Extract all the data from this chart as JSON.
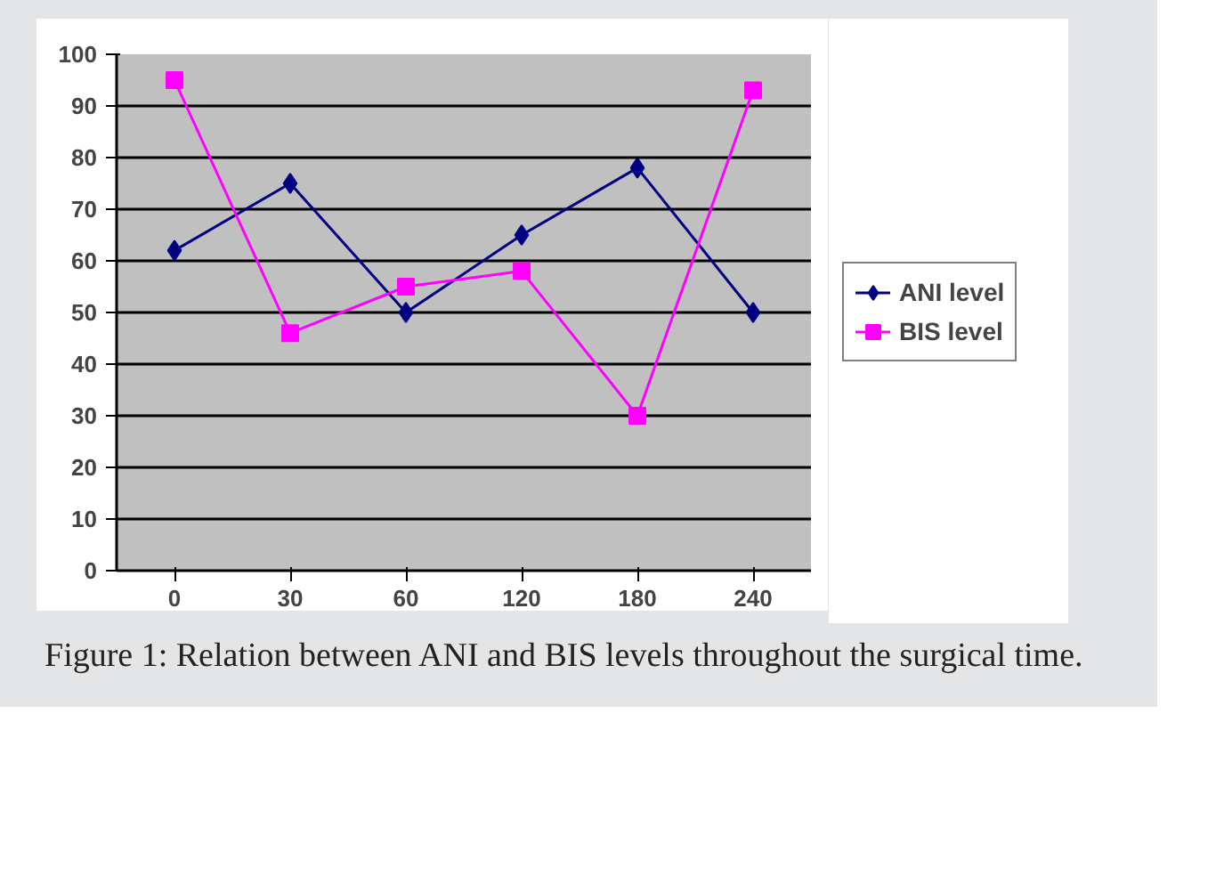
{
  "chart_data": {
    "type": "line",
    "categories": [
      "0",
      "30",
      "60",
      "120",
      "180",
      "240"
    ],
    "series": [
      {
        "name": "ANI level",
        "color": "#000080",
        "marker": "diamond",
        "values": [
          62,
          75,
          50,
          65,
          78,
          50
        ]
      },
      {
        "name": "BIS level",
        "color": "#ff00ff",
        "marker": "square",
        "values": [
          95,
          46,
          55,
          58,
          30,
          93
        ]
      }
    ],
    "ylim": [
      0,
      100
    ],
    "yticks": [
      0,
      10,
      20,
      30,
      40,
      50,
      60,
      70,
      80,
      90,
      100
    ],
    "grid": "y",
    "legend": "right",
    "annotations": [
      "Figure 1: Relation between ANI and BIS levels throughout the surgical time."
    ]
  }
}
